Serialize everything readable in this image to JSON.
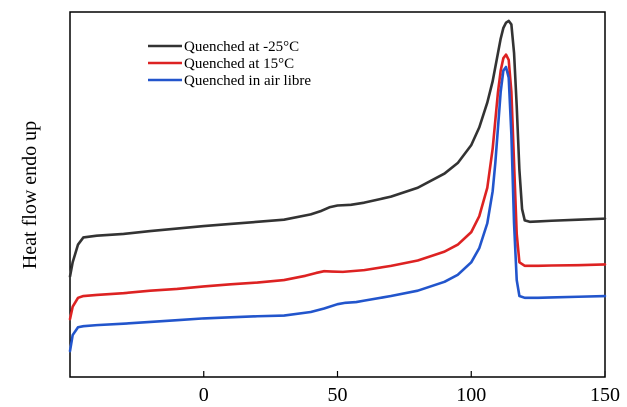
{
  "chart_data": {
    "type": "line",
    "title": "",
    "xlabel": "",
    "ylabel": "Heat flow endo up",
    "xlim": [
      -50,
      150
    ],
    "ylim": [
      0,
      1
    ],
    "x_ticks": [
      0,
      50,
      100,
      150
    ],
    "x_tick_labels": [
      "0",
      "50",
      "100",
      "150"
    ],
    "y_ticks_visible": false,
    "grid": false,
    "legend_position": "top-left",
    "series": [
      {
        "name": "Quenched at -25°C",
        "color": "#333333",
        "x": [
          -50,
          -49,
          -47,
          -45,
          -40,
          -30,
          -20,
          -10,
          0,
          10,
          20,
          30,
          40,
          44,
          47,
          50,
          55,
          60,
          70,
          80,
          90,
          95,
          100,
          103,
          106,
          108,
          110,
          111,
          112,
          113,
          114,
          115,
          116,
          117,
          118,
          119,
          120,
          122,
          125,
          130,
          140,
          150
        ],
        "y": [
          0.3,
          0.34,
          0.39,
          0.41,
          0.415,
          0.42,
          0.428,
          0.435,
          0.442,
          0.448,
          0.454,
          0.46,
          0.475,
          0.485,
          0.495,
          0.5,
          0.502,
          0.508,
          0.525,
          0.55,
          0.59,
          0.62,
          0.67,
          0.72,
          0.79,
          0.85,
          0.93,
          0.97,
          1.0,
          1.015,
          1.02,
          1.01,
          0.93,
          0.78,
          0.6,
          0.49,
          0.458,
          0.454,
          0.455,
          0.457,
          0.46,
          0.463
        ]
      },
      {
        "name": "Quenched at 15°C",
        "color": "#dd2222",
        "x": [
          -50,
          -49,
          -47,
          -45,
          -40,
          -30,
          -20,
          -10,
          0,
          10,
          20,
          30,
          38,
          42,
          45,
          48,
          52,
          60,
          70,
          80,
          90,
          95,
          100,
          103,
          106,
          108,
          109,
          110,
          111,
          112,
          113,
          114,
          115,
          116,
          117,
          118,
          120,
          125,
          130,
          140,
          150
        ],
        "y": [
          0.18,
          0.215,
          0.24,
          0.245,
          0.248,
          0.253,
          0.26,
          0.265,
          0.272,
          0.278,
          0.283,
          0.29,
          0.302,
          0.31,
          0.315,
          0.314,
          0.313,
          0.318,
          0.33,
          0.345,
          0.37,
          0.39,
          0.425,
          0.47,
          0.55,
          0.66,
          0.74,
          0.82,
          0.88,
          0.915,
          0.925,
          0.91,
          0.82,
          0.62,
          0.42,
          0.34,
          0.33,
          0.33,
          0.331,
          0.332,
          0.334
        ]
      },
      {
        "name": "Quenched in air libre",
        "color": "#2255cc",
        "x": [
          -50,
          -49,
          -47,
          -45,
          -40,
          -30,
          -20,
          -10,
          0,
          10,
          20,
          30,
          40,
          45,
          50,
          53,
          57,
          60,
          70,
          80,
          90,
          95,
          100,
          103,
          106,
          108,
          109,
          110,
          111,
          112,
          113,
          114,
          115,
          116,
          117,
          118,
          120,
          125,
          130,
          140,
          150
        ],
        "y": [
          0.09,
          0.135,
          0.157,
          0.16,
          0.163,
          0.167,
          0.172,
          0.177,
          0.182,
          0.185,
          0.188,
          0.19,
          0.2,
          0.21,
          0.222,
          0.226,
          0.228,
          0.232,
          0.245,
          0.26,
          0.285,
          0.305,
          0.34,
          0.38,
          0.45,
          0.54,
          0.62,
          0.72,
          0.82,
          0.88,
          0.89,
          0.86,
          0.7,
          0.45,
          0.29,
          0.245,
          0.24,
          0.24,
          0.241,
          0.243,
          0.245
        ]
      }
    ]
  }
}
